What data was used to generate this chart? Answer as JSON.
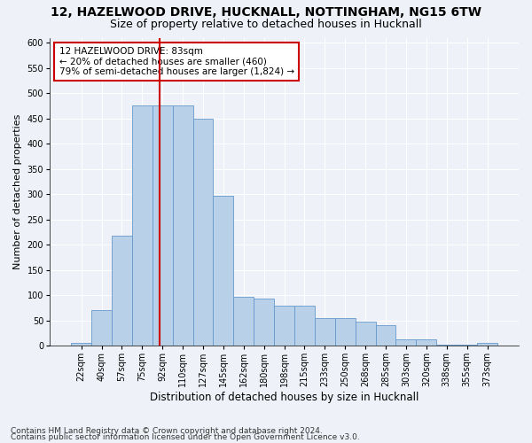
{
  "title_line1": "12, HAZELWOOD DRIVE, HUCKNALL, NOTTINGHAM, NG15 6TW",
  "title_line2": "Size of property relative to detached houses in Hucknall",
  "xlabel": "Distribution of detached houses by size in Hucknall",
  "ylabel": "Number of detached properties",
  "footer_line1": "Contains HM Land Registry data © Crown copyright and database right 2024.",
  "footer_line2": "Contains public sector information licensed under the Open Government Licence v3.0.",
  "categories": [
    "22sqm",
    "40sqm",
    "57sqm",
    "75sqm",
    "92sqm",
    "110sqm",
    "127sqm",
    "145sqm",
    "162sqm",
    "180sqm",
    "198sqm",
    "215sqm",
    "233sqm",
    "250sqm",
    "268sqm",
    "285sqm",
    "303sqm",
    "320sqm",
    "338sqm",
    "355sqm",
    "373sqm"
  ],
  "values": [
    5,
    70,
    218,
    476,
    476,
    476,
    449,
    296,
    96,
    93,
    80,
    79,
    55,
    54,
    47,
    40,
    13,
    12,
    2,
    2,
    6
  ],
  "bar_color": "#b8d0e8",
  "bar_edge_color": "#6699cc",
  "vline_x": 3.88,
  "vline_color": "#cc0000",
  "annotation_text": "12 HAZELWOOD DRIVE: 83sqm\n← 20% of detached houses are smaller (460)\n79% of semi-detached houses are larger (1,824) →",
  "annotation_box_color": "#cc0000",
  "ylim": [
    0,
    610
  ],
  "yticks": [
    0,
    50,
    100,
    150,
    200,
    250,
    300,
    350,
    400,
    450,
    500,
    550,
    600
  ],
  "background_color": "#eef2f8",
  "plot_background": "#eef2f8",
  "grid_color": "#ffffff",
  "title1_fontsize": 10,
  "title2_fontsize": 9,
  "xlabel_fontsize": 8.5,
  "ylabel_fontsize": 8,
  "tick_fontsize": 7,
  "annotation_fontsize": 7.5,
  "footer_fontsize": 6.5
}
